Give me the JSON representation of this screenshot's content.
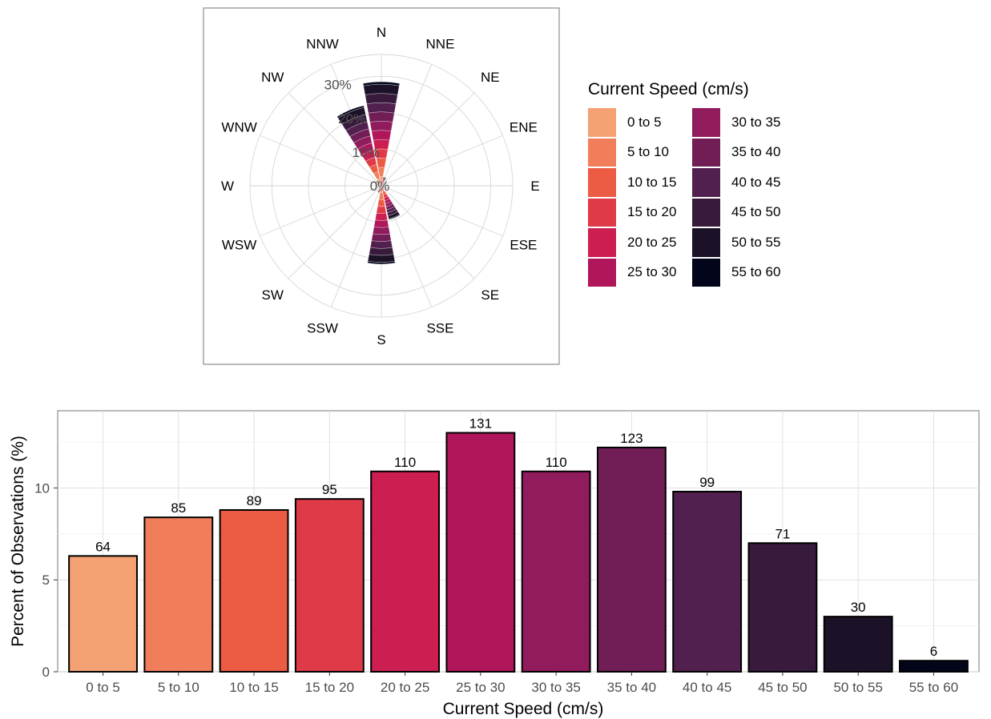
{
  "colors": {
    "speed_palette": [
      "#F4A173",
      "#F07E5A",
      "#EC5B43",
      "#DF3A48",
      "#CC1E51",
      "#B0165A",
      "#901B5D",
      "#711E57",
      "#52204E",
      "#371A3C",
      "#1C1227",
      "#03051A"
    ]
  },
  "chart_data": [
    {
      "type": "wind_rose",
      "directions": [
        "N",
        "NNE",
        "NE",
        "ENE",
        "E",
        "ESE",
        "SE",
        "SSE",
        "S",
        "SSW",
        "SW",
        "WSW",
        "W",
        "WNW",
        "NW",
        "NNW"
      ],
      "radial_ticks": [
        "0%",
        "10%",
        "20%",
        "30%"
      ],
      "radial_tick_values": [
        0,
        10,
        20,
        30
      ],
      "rmax": 36,
      "speed_bins": [
        "0 to 5",
        "5 to 10",
        "10 to 15",
        "15 to 20",
        "20 to 25",
        "25 to 30",
        "30 to 35",
        "35 to 40",
        "40 to 45",
        "45 to 50",
        "50 to 55",
        "55 to 60"
      ],
      "direction_totals": {
        "N": 28.5,
        "NNE": 2.5,
        "NE": 1.0,
        "ENE": 1.0,
        "E": 1.0,
        "ESE": 0.8,
        "SE": 1.0,
        "SSE": 9.5,
        "S": 21.5,
        "SSW": 2.0,
        "SW": 1.0,
        "WSW": 0.6,
        "W": 1.0,
        "WNW": 0.8,
        "NW": 1.8,
        "NNW": 22.5
      }
    },
    {
      "type": "bar",
      "title": "",
      "xlabel": "Current Speed (cm/s)",
      "ylabel": "Percent of Observations (%)",
      "categories": [
        "0 to 5",
        "5 to 10",
        "10 to 15",
        "15 to 20",
        "20 to 25",
        "25 to 30",
        "30 to 35",
        "35 to 40",
        "40 to 45",
        "45 to 50",
        "50 to 55",
        "55 to 60"
      ],
      "values": [
        6.3,
        8.4,
        8.8,
        9.4,
        10.9,
        13.0,
        10.9,
        12.2,
        9.8,
        7.0,
        3.0,
        0.6
      ],
      "data_labels": [
        "64",
        "85",
        "89",
        "95",
        "110",
        "131",
        "110",
        "123",
        "99",
        "71",
        "30",
        "6"
      ],
      "ylim": [
        0,
        14.2
      ],
      "yticks": [
        0,
        5,
        10
      ],
      "grid": true
    }
  ],
  "legend": {
    "title": "Current Speed (cm/s)",
    "items": [
      {
        "label": "0 to 5"
      },
      {
        "label": "5 to 10"
      },
      {
        "label": "10 to 15"
      },
      {
        "label": "15 to 20"
      },
      {
        "label": "20 to 25"
      },
      {
        "label": "25 to 30"
      },
      {
        "label": "30 to 35"
      },
      {
        "label": "35 to 40"
      },
      {
        "label": "40 to 45"
      },
      {
        "label": "45 to 50"
      },
      {
        "label": "50 to 55"
      },
      {
        "label": "55 to 60"
      }
    ]
  }
}
